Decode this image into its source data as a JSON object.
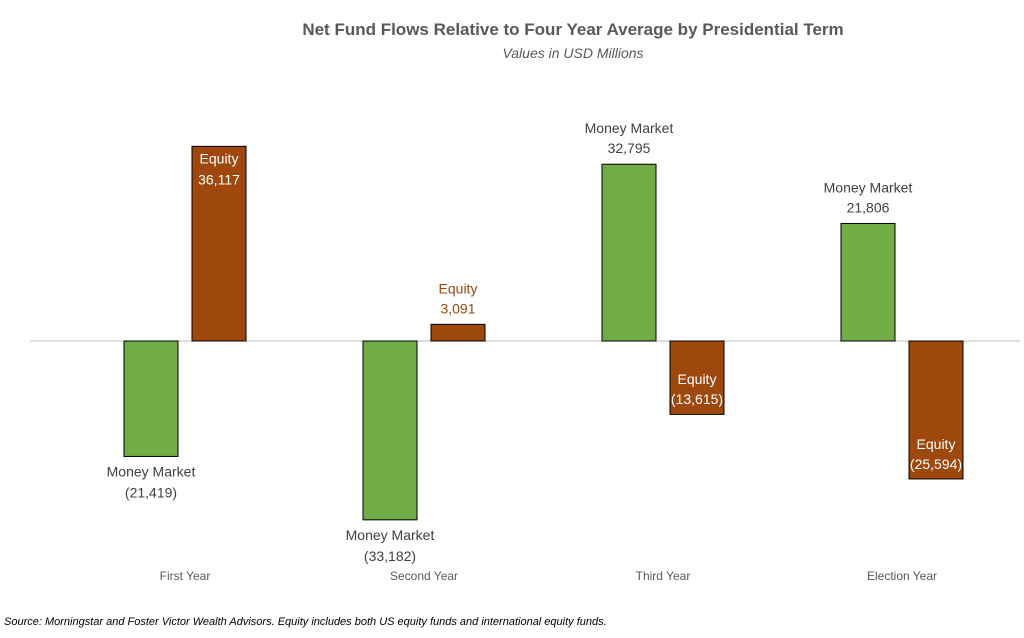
{
  "chart_data": {
    "type": "bar",
    "title": "Net Fund Flows Relative to Four Year Average by Presidential Term",
    "subtitle": "Values in USD Millions",
    "categories": [
      "First Year",
      "Second Year",
      "Third Year",
      "Election Year"
    ],
    "series": [
      {
        "name": "Money Market",
        "color": "#70ad47",
        "values": [
          -21419,
          -33182,
          32795,
          21806
        ],
        "labels": [
          "(21,419)",
          "(33,182)",
          "32,795",
          "21,806"
        ]
      },
      {
        "name": "Equity",
        "color": "#9e480e",
        "values": [
          36117,
          3091,
          -13615,
          -25594
        ],
        "labels": [
          "36,117",
          "3,091",
          "(13,615)",
          "(25,594)"
        ]
      }
    ],
    "ylim": [
      -40000,
      40000
    ],
    "grid": false,
    "legend": "none"
  },
  "source_note": "Source: Morningstar and Foster Victor Wealth Advisors. Equity includes both US equity funds and international equity funds."
}
